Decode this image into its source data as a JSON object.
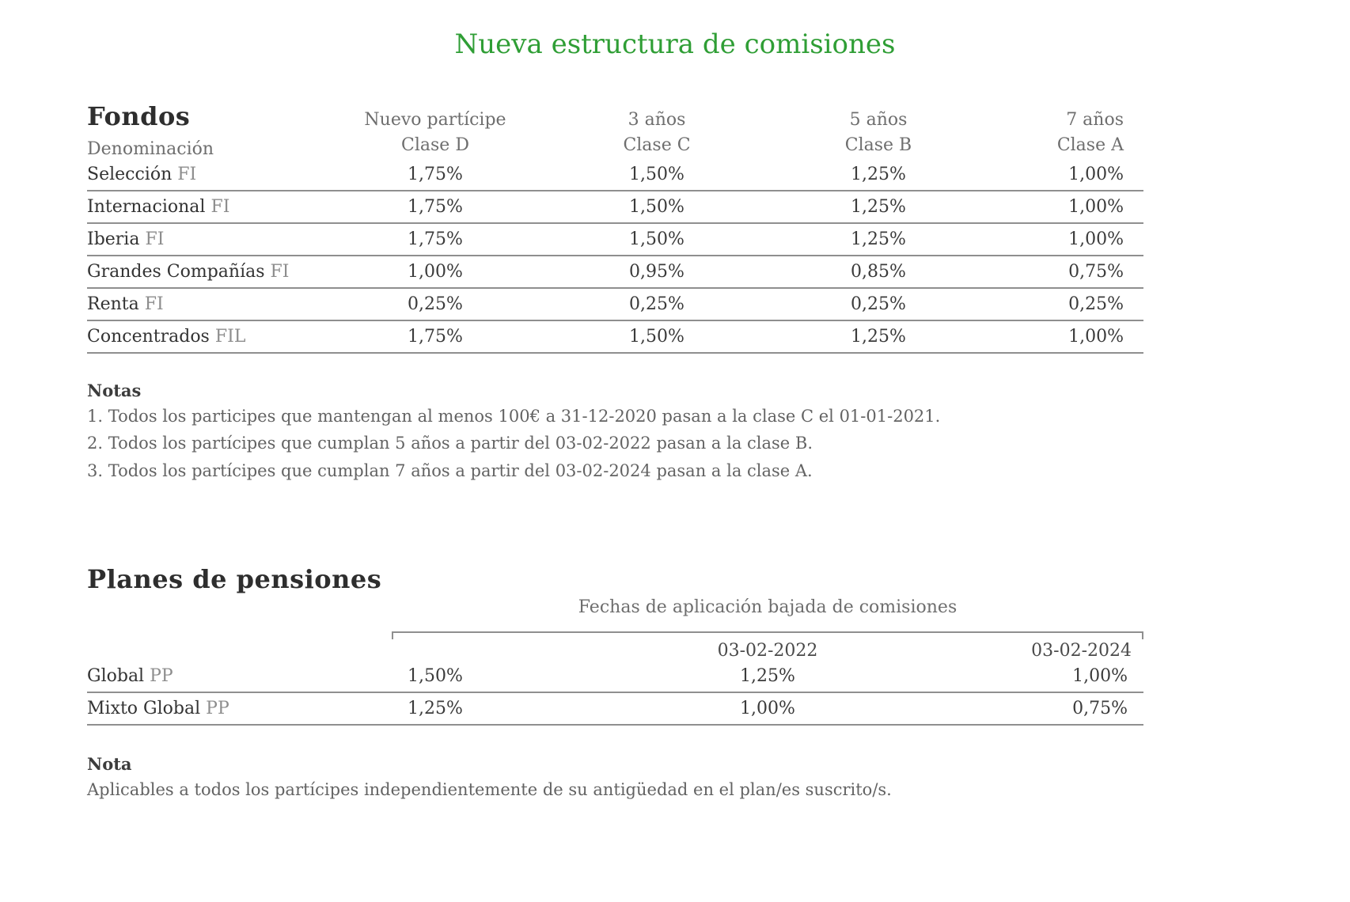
{
  "page": {
    "title": "Nueva estructura de comisiones",
    "title_color": "#2f9e35",
    "line_color": "#8f8f8f"
  },
  "fondos": {
    "section_title": "Fondos",
    "first_column_header": "Denominación",
    "columns": [
      {
        "line1": "Nuevo partícipe",
        "line2": "Clase D"
      },
      {
        "line1": "3 años",
        "line2": "Clase C"
      },
      {
        "line1": "5 años",
        "line2": "Clase B"
      },
      {
        "line1": "7 años",
        "line2": "Clase A"
      }
    ],
    "rows": [
      {
        "name": "Selección",
        "suffix": "FI",
        "values": [
          "1,75%",
          "1,50%",
          "1,25%",
          "1,00%"
        ]
      },
      {
        "name": "Internacional",
        "suffix": "FI",
        "values": [
          "1,75%",
          "1,50%",
          "1,25%",
          "1,00%"
        ]
      },
      {
        "name": "Iberia",
        "suffix": "FI",
        "values": [
          "1,75%",
          "1,50%",
          "1,25%",
          "1,00%"
        ]
      },
      {
        "name": "Grandes Compañías",
        "suffix": "FI",
        "values": [
          "1,00%",
          "0,95%",
          "0,85%",
          "0,75%"
        ]
      },
      {
        "name": "Renta",
        "suffix": "FI",
        "values": [
          "0,25%",
          "0,25%",
          "0,25%",
          "0,25%"
        ]
      },
      {
        "name": "Concentrados",
        "suffix": "FIL",
        "values": [
          "1,75%",
          "1,50%",
          "1,25%",
          "1,00%"
        ]
      }
    ],
    "notes_title": "Notas",
    "notes": [
      "1. Todos los participes que mantengan al menos 100€ a 31-12-2020 pasan a la clase C el 01-01-2021.",
      "2. Todos los partícipes que cumplan 5 años a partir del 03-02-2022 pasan a la clase B.",
      "3. Todos los partícipes que cumplan 7 años a partir del 03-02-2024 pasan a la clase A."
    ]
  },
  "planes": {
    "section_title": "Planes de pensiones",
    "group_header": "Fechas de aplicación bajada de comisiones",
    "date_headers": [
      "03-02-2022",
      "03-02-2024"
    ],
    "rows": [
      {
        "name": "Global",
        "suffix": "PP",
        "values": [
          "1,50%",
          "1,25%",
          "1,00%"
        ]
      },
      {
        "name": "Mixto Global",
        "suffix": "PP",
        "values": [
          "1,25%",
          "1,00%",
          "0,75%"
        ]
      }
    ],
    "note_title": "Nota",
    "note": "Aplicables a todos los partícipes independientemente de su antigüedad en el plan/es suscrito/s."
  }
}
